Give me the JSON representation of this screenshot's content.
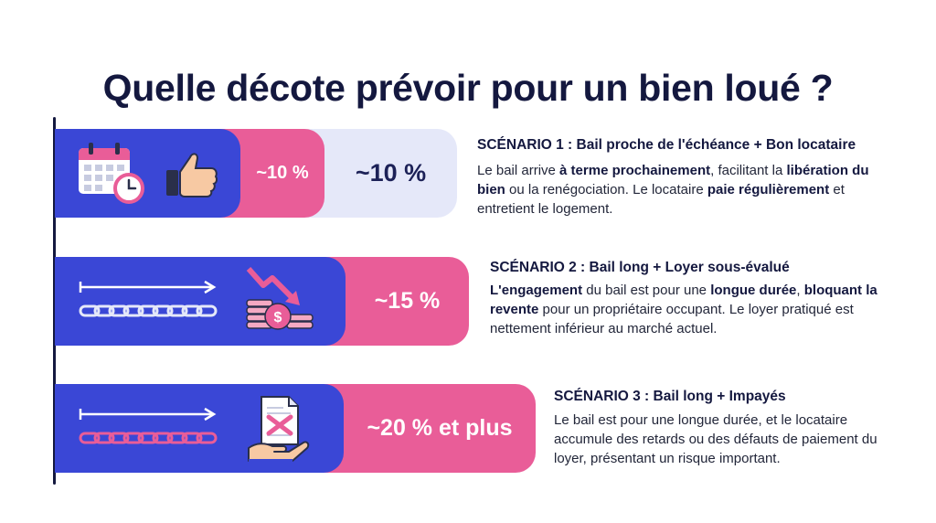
{
  "title": "Quelle décote prévoir pour un bien loué ?",
  "colors": {
    "blue": "#3a47d6",
    "pink": "#e95d98",
    "lavender": "#e5e8f9",
    "navy": "#14183f"
  },
  "scenarios": [
    {
      "icons": [
        "calendar-clock-icon",
        "thumbs-up-icon"
      ],
      "badge": "~10 %",
      "value": "~10 %",
      "title": "SCÉNARIO 1 : Bail proche de l'échéance + Bon locataire",
      "desc": [
        {
          "t": "Le bail arrive ",
          "b": false
        },
        {
          "t": "à terme prochainement",
          "b": true
        },
        {
          "t": ", facilitant la ",
          "b": false
        },
        {
          "t": "libération du bien",
          "b": true
        },
        {
          "t": " ou la renégociation. Le locataire ",
          "b": false
        },
        {
          "t": "paie régulièrement",
          "b": true
        },
        {
          "t": " et entretient le logement.",
          "b": false
        }
      ]
    },
    {
      "icons": [
        "long-arrow-chain-icon",
        "falling-coins-icon"
      ],
      "value": "~15 %",
      "title": "SCÉNARIO 2 : Bail long + Loyer sous-évalué",
      "desc": [
        {
          "t": "L'engagement",
          "b": true
        },
        {
          "t": " du bail est pour une ",
          "b": false
        },
        {
          "t": "longue durée",
          "b": true
        },
        {
          "t": ", ",
          "b": false
        },
        {
          "t": "bloquant la revente",
          "b": true
        },
        {
          "t": " pour un propriétaire occupant. Le loyer pratiqué est nettement inférieur au marché actuel.",
          "b": false
        }
      ]
    },
    {
      "icons": [
        "long-arrow-chain-icon",
        "unpaid-invoice-hand-icon"
      ],
      "value": "~20 % et plus",
      "title": "SCÉNARIO 3 : Bail long + Impayés",
      "desc": [
        {
          "t": "Le bail est pour une longue durée, et le locataire accumule des retards ou des défauts de paiement du loyer, présentant un risque important.",
          "b": false
        }
      ]
    }
  ]
}
